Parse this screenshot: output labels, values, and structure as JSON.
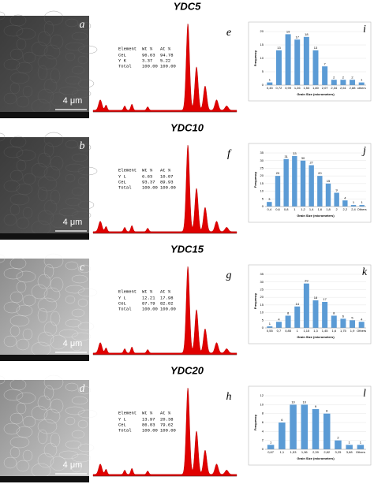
{
  "rows": [
    {
      "title": "YDC5",
      "sem": {
        "letter": "a",
        "scale": "4 μm"
      },
      "eds": {
        "letter": "e",
        "table": {
          "header": [
            "Element",
            "Wt %",
            "At %"
          ],
          "rows": [
            [
              "CeL",
              "96.63",
              "94.78"
            ],
            [
              "Y K",
              "3.37",
              "5.22"
            ],
            [
              "Total",
              "100.00",
              "100.00"
            ]
          ]
        }
      },
      "histogram": {
        "letter": "i",
        "type": "bar",
        "color": "#5b9bd5",
        "xlabel": "Grain Size (micrometers)",
        "ylabel": "Frequency",
        "categories": [
          "0,45",
          "0,72",
          "0,99",
          "1,26",
          "1,53",
          "1,80",
          "2,07",
          "2,34",
          "2,61",
          "2,88",
          "others"
        ],
        "values": [
          1,
          13,
          19,
          17,
          18,
          13,
          7,
          2,
          2,
          2,
          1
        ],
        "ylim": [
          0,
          20
        ],
        "yticks": [
          0,
          5,
          10,
          15,
          20
        ]
      }
    },
    {
      "title": "YDC10",
      "sem": {
        "letter": "b",
        "scale": "4 μm"
      },
      "eds": {
        "letter": "f",
        "table": {
          "header": [
            "Element",
            "Wt %",
            "At %"
          ],
          "rows": [
            [
              "Y L",
              "6.63",
              "10.07"
            ],
            [
              "CeL",
              "93.37",
              "89.93"
            ],
            [
              "Total",
              "100.00",
              "100.00"
            ]
          ]
        }
      },
      "histogram": {
        "letter": "j",
        "type": "bar",
        "color": "#5b9bd5",
        "xlabel": "Grain Size (micrometers)",
        "ylabel": "Frequency",
        "categories": [
          "0,4",
          "0,6",
          "0,8",
          "1",
          "1,2",
          "1,4",
          "1,6",
          "1,8",
          "2",
          "2,2",
          "2,4",
          "Others"
        ],
        "values": [
          3,
          20,
          31,
          33,
          30,
          27,
          20,
          15,
          9,
          4,
          1,
          1
        ],
        "ylim": [
          0,
          35
        ],
        "yticks": [
          0,
          5,
          10,
          15,
          20,
          25,
          30,
          35
        ]
      }
    },
    {
      "title": "YDC15",
      "sem": {
        "letter": "c",
        "scale": "4 μm"
      },
      "eds": {
        "letter": "g",
        "table": {
          "header": [
            "Element",
            "Wt %",
            "At %"
          ],
          "rows": [
            [
              "Y L",
              "12.21",
              "17.98"
            ],
            [
              "CeL",
              "87.79",
              "82.02"
            ],
            [
              "Total",
              "100.00",
              "100.00"
            ]
          ]
        }
      },
      "histogram": {
        "letter": "k",
        "type": "bar",
        "color": "#5b9bd5",
        "xlabel": "Grain Size (micrometers)",
        "ylabel": "Frequency",
        "categories": [
          "0,55",
          "0,7",
          "0,85",
          "1",
          "1,15",
          "1,3",
          "1,45",
          "1,6",
          "1,75",
          "1,9",
          "Others"
        ],
        "values": [
          1,
          4,
          8,
          14,
          29,
          18,
          17,
          8,
          6,
          5,
          4
        ],
        "ylim": [
          0,
          35
        ],
        "yticks": [
          0,
          5,
          10,
          15,
          20,
          25,
          30,
          35
        ]
      }
    },
    {
      "title": "YDC20",
      "sem": {
        "letter": "d",
        "scale": "4 μm"
      },
      "eds": {
        "letter": "h",
        "table": {
          "header": [
            "Element",
            "Wt %",
            "At %"
          ],
          "rows": [
            [
              "Y L",
              "13.97",
              "20.38"
            ],
            [
              "CeL",
              "86.03",
              "79.62"
            ],
            [
              "Total",
              "100.00",
              "100.00"
            ]
          ]
        }
      },
      "histogram": {
        "letter": "l",
        "type": "bar",
        "color": "#5b9bd5",
        "xlabel": "Grain Size (micrometers)",
        "ylabel": "Frequency",
        "categories": [
          "0,67",
          "1,1",
          "1,53",
          "1,96",
          "2,39",
          "2,82",
          "3,25",
          "3,68",
          "Others"
        ],
        "values": [
          1,
          6,
          10,
          10,
          9,
          8,
          2,
          1,
          1
        ],
        "ylim": [
          0,
          12
        ],
        "yticks": [
          0,
          2,
          4,
          6,
          8,
          10,
          12
        ]
      }
    }
  ]
}
